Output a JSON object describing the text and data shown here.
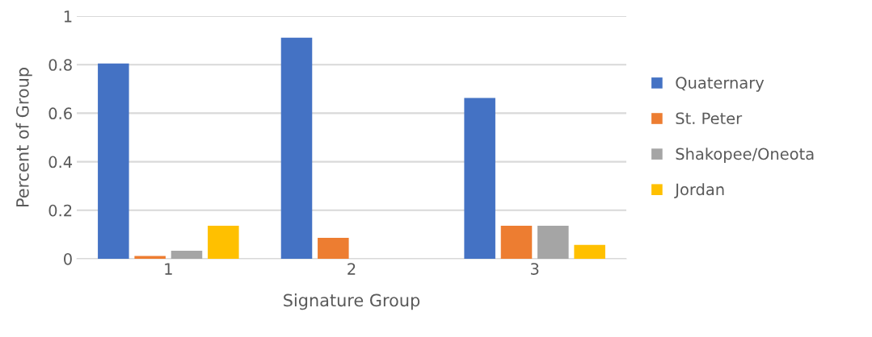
{
  "chart_data": {
    "type": "bar",
    "xlabel": "Signature Group",
    "ylabel": "Percent of Group",
    "categories": [
      "1",
      "2",
      "3"
    ],
    "series": [
      {
        "name": "Quaternary",
        "color": "#4472c4",
        "values": [
          0.805,
          0.911,
          0.663
        ]
      },
      {
        "name": "St. Peter",
        "color": "#ed7d31",
        "values": [
          0.012,
          0.086,
          0.136
        ]
      },
      {
        "name": "Shakopee/Oneota",
        "color": "#a5a5a5",
        "values": [
          0.033,
          0,
          0.136
        ]
      },
      {
        "name": "Jordan",
        "color": "#ffc000",
        "values": [
          0.136,
          0,
          0.057
        ]
      }
    ],
    "ylim": [
      0,
      1
    ],
    "yticks": [
      0,
      0.2,
      0.4,
      0.6,
      0.8,
      1
    ],
    "grid": "y",
    "legend": "right"
  }
}
